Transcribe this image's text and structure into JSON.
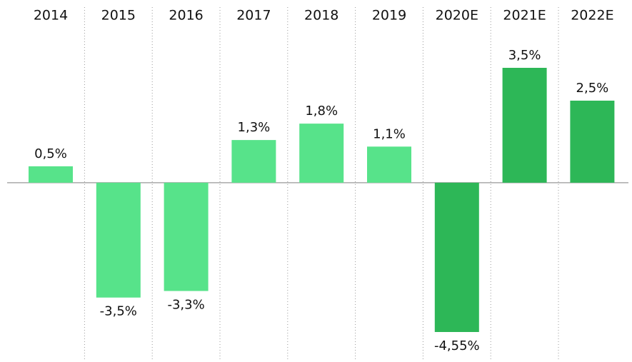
{
  "chart_data": {
    "type": "bar",
    "categories": [
      "2014",
      "2015",
      "2016",
      "2017",
      "2018",
      "2019",
      "2020E",
      "2021E",
      "2022E"
    ],
    "values": [
      0.5,
      -3.5,
      -3.3,
      1.3,
      1.8,
      1.1,
      -4.55,
      3.5,
      2.5
    ],
    "value_labels": [
      "0,5%",
      "-3,5%",
      "-3,3%",
      "1,3%",
      "1,8%",
      "1,1%",
      "-4,55%",
      "3,5%",
      "2,5%"
    ],
    "colors": [
      "#57e38a",
      "#57e38a",
      "#57e38a",
      "#57e38a",
      "#57e38a",
      "#57e38a",
      "#2db757",
      "#2db757",
      "#2db757"
    ]
  }
}
